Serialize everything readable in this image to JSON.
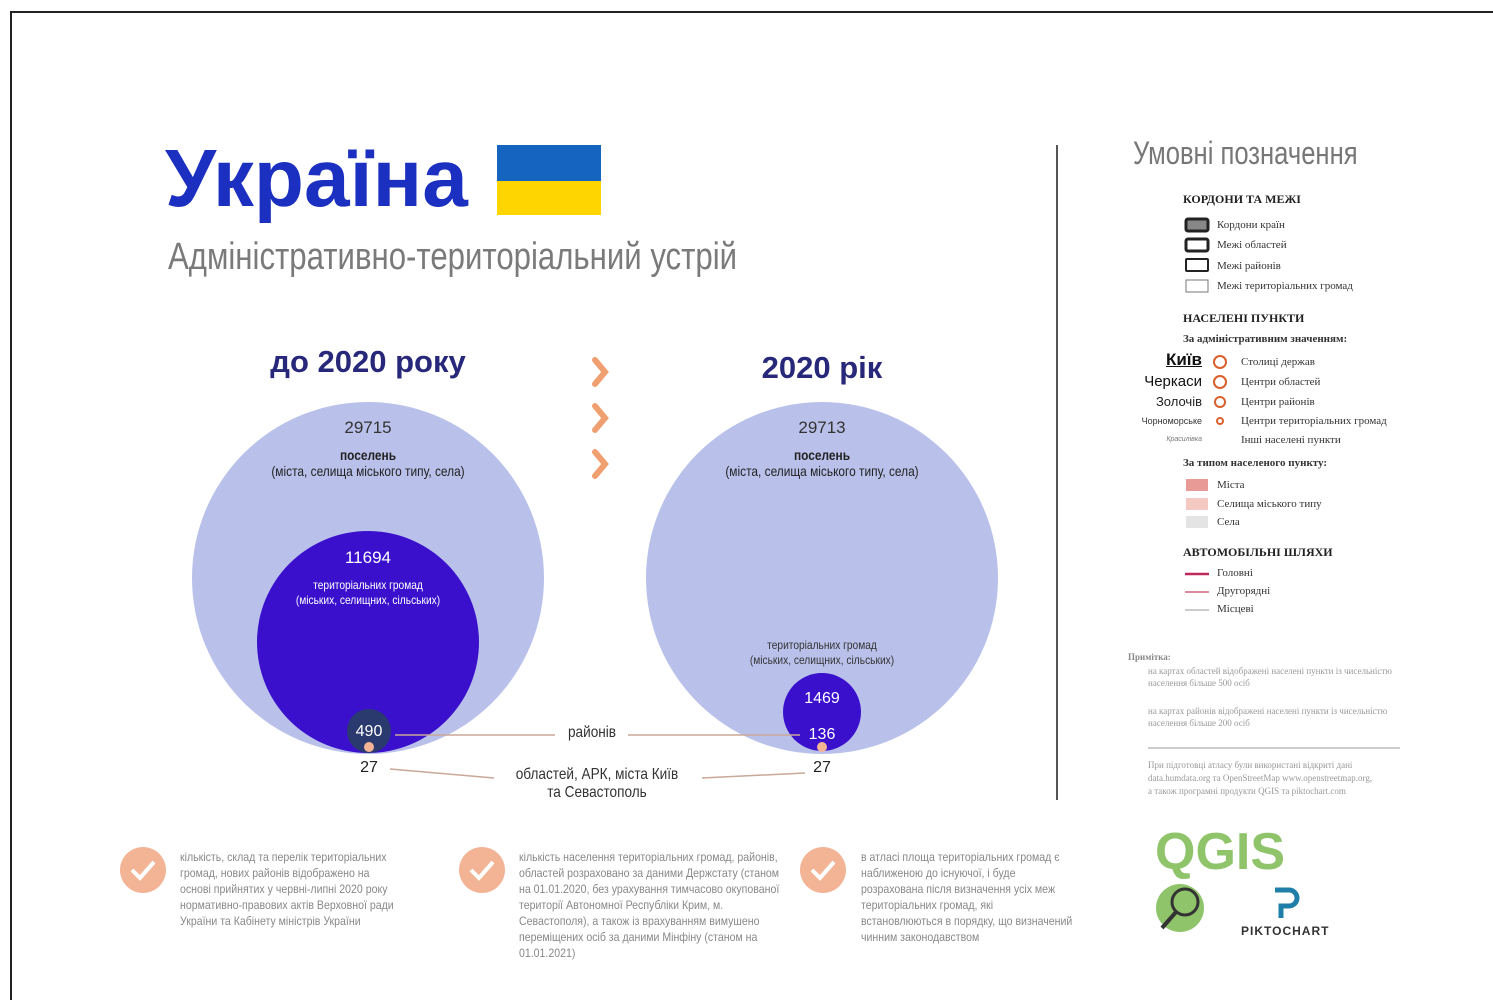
{
  "header": {
    "title": "Україна",
    "subtitle": "Адміністративно-територіальний устрій"
  },
  "before": {
    "title": "до 2020 року",
    "settlements": {
      "value": 29715,
      "label": "поселень",
      "note": "(міста, селища міського типу, села)"
    },
    "communities": {
      "value": 11694,
      "label": "територіальних громад",
      "note": "(міських, селищних, сільських)"
    },
    "districts": 490,
    "regions": 27
  },
  "after": {
    "title": "2020 рік",
    "settlements": {
      "value": 29713,
      "label": "поселень",
      "note": "(міста, селища міського типу, села)"
    },
    "communities": {
      "value": 1469,
      "label": "територіальних громад",
      "note": "(міських, селищних, сільських)"
    },
    "districts": 136,
    "regions": 27
  },
  "connectors": {
    "districts": "районів",
    "regions": "областей, АРК, міста Київ та Севастополь"
  },
  "notes": [
    "кількість, склад та перелік територіальних громад, нових районів відображено на основі прийнятих у червні-липні 2020 року нормативно-правових актів Верховної ради України та Кабінету міністрів України",
    "кількість населення територіальних громад, районів, областей розраховано за даними Держстату (станом на 01.01.2020, без урахування тимчасово окупованої території Автономної Республіки Крим, м. Севастополя), а також із врахуванням вимушено переміщених осіб за даними Мінфіну (станом на 01.01.2021)",
    "в атласі площа територіальних громад є наближеною до існуючої, і буде розрахована після визначення усіх меж територіальних громад, які встановлюються в порядку, що визначений чинним законодавством"
  ],
  "legend": {
    "title": "Умовні позначення",
    "borders": {
      "title": "КОРДОНИ ТА МЕЖІ",
      "items": [
        "Кордони країн",
        "Межі областей",
        "Межі районів",
        "Межі територіальних громад"
      ]
    },
    "settlements": {
      "title": "НАСЕЛЕНІ ПУНКТИ",
      "admin_title": "За адміністративним значенням:",
      "admin_items": [
        {
          "sample": "Київ",
          "label": "Столиці держав"
        },
        {
          "sample": "Черкаси",
          "label": "Центри областей"
        },
        {
          "sample": "Золочів",
          "label": "Центри районів"
        },
        {
          "sample": "Чорноморське",
          "label": "Центри територіальних громад"
        },
        {
          "sample": "Красилівка",
          "label": "Інші населені пункти"
        }
      ],
      "type_title": "За типом населеного пункту:",
      "type_items": [
        "Міста",
        "Селища міського типу",
        "Села"
      ]
    },
    "roads": {
      "title": "АВТОМОБІЛЬНІ ШЛЯХИ",
      "items": [
        "Головні",
        "Другорядні",
        "Місцеві"
      ]
    },
    "note_title": "Примітка:",
    "note_items": [
      "на картах областей відображені населені пункти із чисельністю населення більше 500 осіб",
      "на картах районів відображені населені пункти із чисельністю населення більше 200 осіб"
    ],
    "sources": "При підготовці атласу були використані відкриті дані data.humdata.org та OpenStreetMap www.openstreetmap.org, а також програмні продукти QGIS та piktochart.com"
  },
  "logos": {
    "qgis": "QGIS",
    "piktochart": "PIKTOCHART"
  }
}
